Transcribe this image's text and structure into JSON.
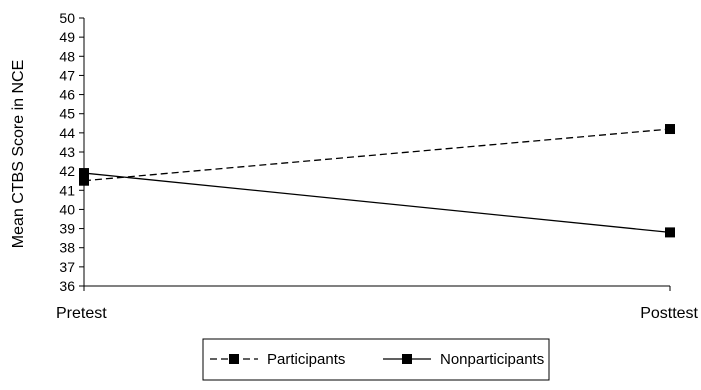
{
  "chart_data": {
    "type": "line",
    "title": "",
    "xlabel": "",
    "ylabel": "Mean CTBS Score in NCE",
    "categories": [
      "Pretest",
      "Posttest"
    ],
    "ylim": [
      36,
      50
    ],
    "yticks": [
      36,
      37,
      38,
      39,
      40,
      41,
      42,
      43,
      44,
      45,
      46,
      47,
      48,
      49,
      50
    ],
    "grid": false,
    "legend_placement": "bottom-center",
    "series": [
      {
        "name": "Participants",
        "values": [
          41.5,
          44.2
        ],
        "line_style": "dashed",
        "marker": "square",
        "color": "#000000"
      },
      {
        "name": "Nonparticipants",
        "values": [
          41.9,
          38.8
        ],
        "line_style": "solid",
        "marker": "square",
        "color": "#000000"
      }
    ]
  }
}
